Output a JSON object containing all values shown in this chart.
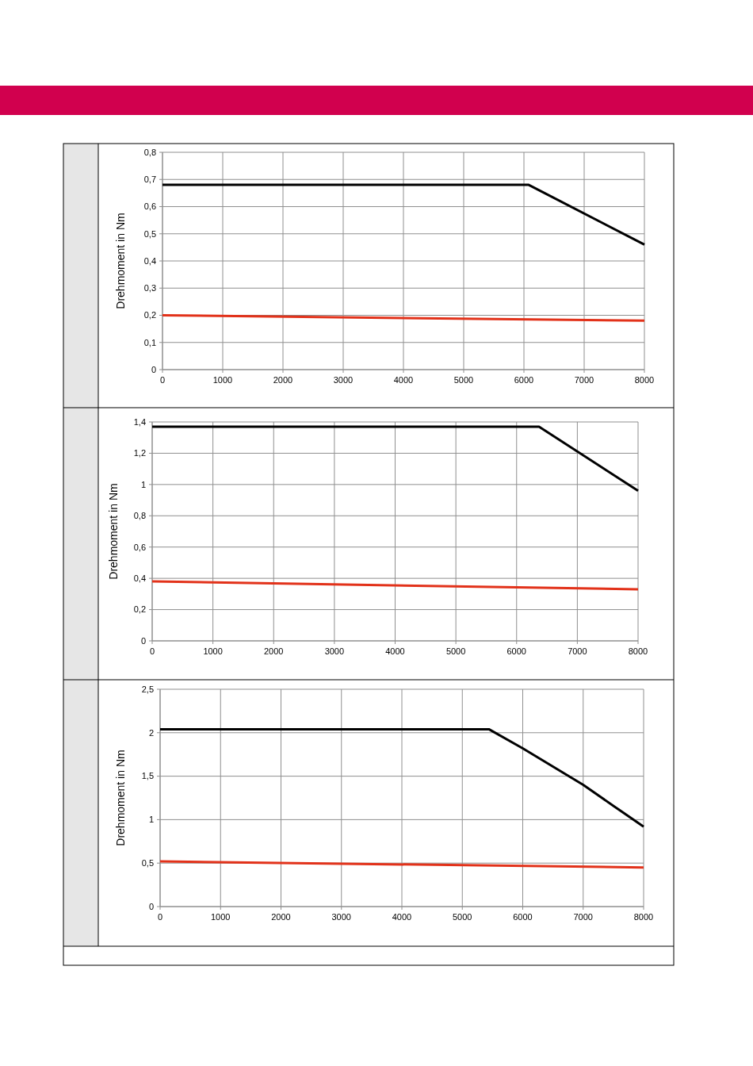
{
  "chart_data": [
    {
      "type": "line",
      "ylabel": "Drehmoment in Nm",
      "xlim": [
        0,
        8000
      ],
      "ylim": [
        0,
        0.8
      ],
      "xticks": [
        0,
        1000,
        2000,
        3000,
        4000,
        5000,
        6000,
        7000,
        8000
      ],
      "yticks": [
        0,
        {
          "value": 0.1,
          "label": "0,1"
        },
        {
          "value": 0.2,
          "label": "0,2"
        },
        {
          "value": 0.3,
          "label": "0,3"
        },
        {
          "value": 0.4,
          "label": "0,4"
        },
        {
          "value": 0.5,
          "label": "0,5"
        },
        {
          "value": 0.6,
          "label": "0,6"
        },
        {
          "value": 0.7,
          "label": "0,7"
        },
        {
          "value": 0.8,
          "label": "0,8"
        }
      ],
      "grid": true,
      "series": [
        {
          "color": "#000000",
          "x": [
            0,
            6080,
            8000
          ],
          "values": [
            0.68,
            0.68,
            0.46
          ]
        },
        {
          "color": "#e2321a",
          "x": [
            0,
            8000
          ],
          "values": [
            0.2,
            0.18
          ]
        }
      ]
    },
    {
      "type": "line",
      "ylabel": "Drehmoment in Nm",
      "xlim": [
        0,
        8000
      ],
      "ylim": [
        0,
        1.4
      ],
      "xticks": [
        0,
        1000,
        2000,
        3000,
        4000,
        5000,
        6000,
        7000,
        8000
      ],
      "yticks": [
        0,
        {
          "value": 0.2,
          "label": "0,2"
        },
        {
          "value": 0.4,
          "label": "0,4"
        },
        {
          "value": 0.6,
          "label": "0,6"
        },
        {
          "value": 0.8,
          "label": "0,8"
        },
        1,
        {
          "value": 1.2,
          "label": "1,2"
        },
        {
          "value": 1.4,
          "label": "1,4"
        }
      ],
      "grid": true,
      "series": [
        {
          "color": "#000000",
          "x": [
            0,
            6370,
            8000
          ],
          "values": [
            1.37,
            1.37,
            0.96
          ]
        },
        {
          "color": "#e2321a",
          "x": [
            0,
            8000
          ],
          "values": [
            0.38,
            0.33
          ]
        }
      ]
    },
    {
      "type": "line",
      "ylabel": "Drehmoment in Nm",
      "xlim": [
        0,
        8000
      ],
      "ylim": [
        0,
        2.5
      ],
      "xticks": [
        0,
        1000,
        2000,
        3000,
        4000,
        5000,
        6000,
        7000,
        8000
      ],
      "yticks": [
        0,
        {
          "value": 0.5,
          "label": "0,5"
        },
        1,
        {
          "value": 1.5,
          "label": "1,5"
        },
        2,
        {
          "value": 2.5,
          "label": "2,5"
        }
      ],
      "grid": true,
      "series": [
        {
          "color": "#000000",
          "x": [
            0,
            5440,
            6000,
            7000,
            7600,
            8000
          ],
          "values": [
            2.04,
            2.04,
            1.82,
            1.4,
            1.11,
            0.92
          ]
        },
        {
          "color": "#e2321a",
          "x": [
            0,
            8000
          ],
          "values": [
            0.52,
            0.45
          ]
        }
      ]
    }
  ]
}
